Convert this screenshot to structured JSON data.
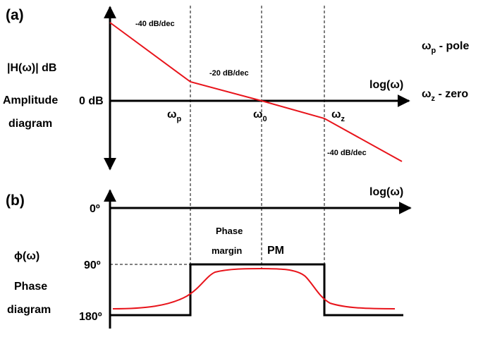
{
  "panel_a": {
    "tag": "(a)",
    "y_label": "|H(ω)| dB",
    "title_line1": "Amplitude",
    "title_line2": "diagram",
    "zero_db": "0 dB",
    "x_axis": "log(ω)",
    "slope_initial": "-40 dB/dec",
    "slope_middle": "-20 dB/dec",
    "slope_final": "-40 dB/dec",
    "omega_p": {
      "main": "ω",
      "sub": "p"
    },
    "omega_0": {
      "main": "ω",
      "sub": "0"
    },
    "omega_z": {
      "main": "ω",
      "sub": "z"
    }
  },
  "legend": {
    "pole": {
      "main": "ω",
      "sub": "p",
      "text": " -  pole"
    },
    "zero": {
      "main": "ω",
      "sub": "z",
      "text": " -  zero"
    }
  },
  "panel_b": {
    "tag": "(b)",
    "x_axis": "log(ω)",
    "zero_deg": "0º",
    "ninety_deg": "90º",
    "one_eighty_deg": "180º",
    "y_label": "ϕ(ω)",
    "title_line1": "Phase",
    "title_line2": "diagram",
    "margin_line1": "Phase",
    "margin_line2": "margin",
    "pm": "PM"
  },
  "colors": {
    "curve": "#e8141b",
    "axis": "#000000"
  }
}
